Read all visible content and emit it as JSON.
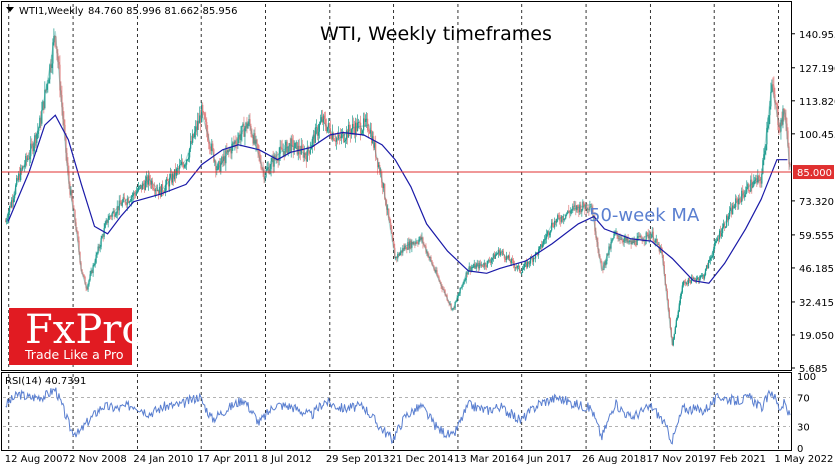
{
  "header": {
    "symbol": "WTI1,Weekly",
    "ohlc": "84.760 85.996 81.662 85.956"
  },
  "colors": {
    "bull": "#1f9c8f",
    "bear": "#e07b7b",
    "ma": "#1a1aa8",
    "level": "#e03030",
    "rsi": "#5a7fd0",
    "brand": "#e11b22"
  },
  "brand": {
    "logo": "FxPro",
    "tagline": "Trade Like a Pro"
  },
  "chart_data": {
    "type": "candlestick",
    "title": "WTI, Weekly timeframes",
    "price_ticks": [
      "140.955",
      "127.190",
      "113.820",
      "100.455",
      "85.000",
      "73.320",
      "59.555",
      "46.185",
      "32.415",
      "19.050",
      "5.685"
    ],
    "price_range": [
      5.685,
      153
    ],
    "level_line": {
      "value": 85.0,
      "label": "85.000"
    },
    "ma_label": "50-week MA",
    "ma_series": [
      [
        2007.6,
        65
      ],
      [
        2008.0,
        85
      ],
      [
        2008.3,
        104
      ],
      [
        2008.5,
        108
      ],
      [
        2008.75,
        98
      ],
      [
        2009.0,
        80
      ],
      [
        2009.25,
        63
      ],
      [
        2009.5,
        60
      ],
      [
        2009.75,
        67
      ],
      [
        2010.0,
        73
      ],
      [
        2010.5,
        76
      ],
      [
        2011.0,
        80
      ],
      [
        2011.3,
        88
      ],
      [
        2011.7,
        94
      ],
      [
        2012.0,
        96
      ],
      [
        2012.4,
        94
      ],
      [
        2012.75,
        90
      ],
      [
        2013.0,
        93
      ],
      [
        2013.4,
        95
      ],
      [
        2013.75,
        100
      ],
      [
        2014.0,
        101
      ],
      [
        2014.4,
        100
      ],
      [
        2014.75,
        96
      ],
      [
        2015.0,
        90
      ],
      [
        2015.3,
        79
      ],
      [
        2015.6,
        64
      ],
      [
        2016.0,
        53
      ],
      [
        2016.4,
        45
      ],
      [
        2016.75,
        44
      ],
      [
        2017.0,
        46
      ],
      [
        2017.5,
        49
      ],
      [
        2018.0,
        56
      ],
      [
        2018.5,
        64
      ],
      [
        2018.8,
        67
      ],
      [
        2019.0,
        62
      ],
      [
        2019.5,
        58
      ],
      [
        2019.9,
        57
      ],
      [
        2020.3,
        50
      ],
      [
        2020.7,
        41
      ],
      [
        2021.0,
        40
      ],
      [
        2021.3,
        48
      ],
      [
        2021.7,
        62
      ],
      [
        2022.0,
        74
      ],
      [
        2022.3,
        90
      ],
      [
        2022.5,
        90
      ]
    ],
    "price_series": [
      [
        2007.55,
        65
      ],
      [
        2007.8,
        83
      ],
      [
        2008.0,
        92
      ],
      [
        2008.2,
        104
      ],
      [
        2008.4,
        128
      ],
      [
        2008.5,
        142
      ],
      [
        2008.6,
        118
      ],
      [
        2008.75,
        82
      ],
      [
        2008.9,
        62
      ],
      [
        2009.0,
        45
      ],
      [
        2009.1,
        38
      ],
      [
        2009.3,
        52
      ],
      [
        2009.5,
        66
      ],
      [
        2009.75,
        72
      ],
      [
        2010.0,
        76
      ],
      [
        2010.3,
        82
      ],
      [
        2010.5,
        77
      ],
      [
        2010.75,
        83
      ],
      [
        2011.0,
        90
      ],
      [
        2011.3,
        109
      ],
      [
        2011.6,
        86
      ],
      [
        2011.9,
        96
      ],
      [
        2012.2,
        105
      ],
      [
        2012.5,
        84
      ],
      [
        2012.75,
        92
      ],
      [
        2013.0,
        96
      ],
      [
        2013.3,
        92
      ],
      [
        2013.6,
        106
      ],
      [
        2013.9,
        98
      ],
      [
        2014.2,
        103
      ],
      [
        2014.5,
        104
      ],
      [
        2014.75,
        82
      ],
      [
        2015.0,
        50
      ],
      [
        2015.2,
        55
      ],
      [
        2015.5,
        58
      ],
      [
        2015.8,
        43
      ],
      [
        2016.1,
        29
      ],
      [
        2016.4,
        46
      ],
      [
        2016.75,
        48
      ],
      [
        2017.0,
        53
      ],
      [
        2017.4,
        45
      ],
      [
        2017.75,
        53
      ],
      [
        2018.0,
        64
      ],
      [
        2018.4,
        70
      ],
      [
        2018.75,
        72
      ],
      [
        2018.95,
        45
      ],
      [
        2019.2,
        60
      ],
      [
        2019.5,
        56
      ],
      [
        2019.9,
        60
      ],
      [
        2020.1,
        52
      ],
      [
        2020.3,
        15
      ],
      [
        2020.5,
        40
      ],
      [
        2020.9,
        43
      ],
      [
        2021.2,
        60
      ],
      [
        2021.5,
        72
      ],
      [
        2021.8,
        80
      ],
      [
        2022.0,
        82
      ],
      [
        2022.2,
        120
      ],
      [
        2022.35,
        103
      ],
      [
        2022.45,
        110
      ],
      [
        2022.55,
        86
      ]
    ],
    "date_ticks": [
      {
        "label": "12 Aug 2007",
        "t": 2007.61
      },
      {
        "label": "2 Nov 2008",
        "t": 2008.84
      },
      {
        "label": "24 Jan 2010",
        "t": 2010.07
      },
      {
        "label": "17 Apr 2011",
        "t": 2011.29
      },
      {
        "label": "8 Jul 2012",
        "t": 2012.52
      },
      {
        "label": "29 Sep 2013",
        "t": 2013.75
      },
      {
        "label": "21 Dec 2014",
        "t": 2014.97
      },
      {
        "label": "13 Mar 2016",
        "t": 2016.2
      },
      {
        "label": "4 Jun 2017",
        "t": 2017.42
      },
      {
        "label": "26 Aug 2018",
        "t": 2018.65
      },
      {
        "label": "17 Nov 2019",
        "t": 2019.88
      },
      {
        "label": "7 Feb 2021",
        "t": 2021.1
      },
      {
        "label": "1 May 2022",
        "t": 2022.33
      }
    ],
    "time_range": [
      2007.5,
      2022.55
    ],
    "rsi": {
      "label": "RSI(14) 40.7391",
      "ticks": [
        "100",
        "70",
        "30",
        "0"
      ],
      "levels": [
        70,
        30
      ],
      "series": [
        [
          2007.55,
          60
        ],
        [
          2007.8,
          75
        ],
        [
          2008.0,
          70
        ],
        [
          2008.3,
          72
        ],
        [
          2008.5,
          82
        ],
        [
          2008.65,
          55
        ],
        [
          2008.8,
          25
        ],
        [
          2008.95,
          20
        ],
        [
          2009.1,
          35
        ],
        [
          2009.4,
          58
        ],
        [
          2009.7,
          55
        ],
        [
          2010.0,
          60
        ],
        [
          2010.3,
          48
        ],
        [
          2010.6,
          58
        ],
        [
          2010.9,
          60
        ],
        [
          2011.25,
          72
        ],
        [
          2011.5,
          40
        ],
        [
          2011.8,
          55
        ],
        [
          2012.1,
          68
        ],
        [
          2012.4,
          35
        ],
        [
          2012.7,
          60
        ],
        [
          2013.0,
          58
        ],
        [
          2013.4,
          45
        ],
        [
          2013.65,
          65
        ],
        [
          2014.0,
          55
        ],
        [
          2014.4,
          58
        ],
        [
          2014.7,
          30
        ],
        [
          2014.95,
          12
        ],
        [
          2015.2,
          45
        ],
        [
          2015.5,
          58
        ],
        [
          2015.8,
          28
        ],
        [
          2016.1,
          15
        ],
        [
          2016.4,
          60
        ],
        [
          2016.75,
          52
        ],
        [
          2017.0,
          58
        ],
        [
          2017.4,
          38
        ],
        [
          2017.75,
          62
        ],
        [
          2018.1,
          70
        ],
        [
          2018.4,
          62
        ],
        [
          2018.75,
          55
        ],
        [
          2018.95,
          15
        ],
        [
          2019.2,
          62
        ],
        [
          2019.5,
          42
        ],
        [
          2019.9,
          58
        ],
        [
          2020.1,
          40
        ],
        [
          2020.3,
          10
        ],
        [
          2020.5,
          55
        ],
        [
          2020.9,
          52
        ],
        [
          2021.2,
          72
        ],
        [
          2021.5,
          65
        ],
        [
          2021.8,
          70
        ],
        [
          2022.0,
          55
        ],
        [
          2022.2,
          80
        ],
        [
          2022.35,
          55
        ],
        [
          2022.45,
          62
        ],
        [
          2022.55,
          42
        ]
      ]
    }
  }
}
